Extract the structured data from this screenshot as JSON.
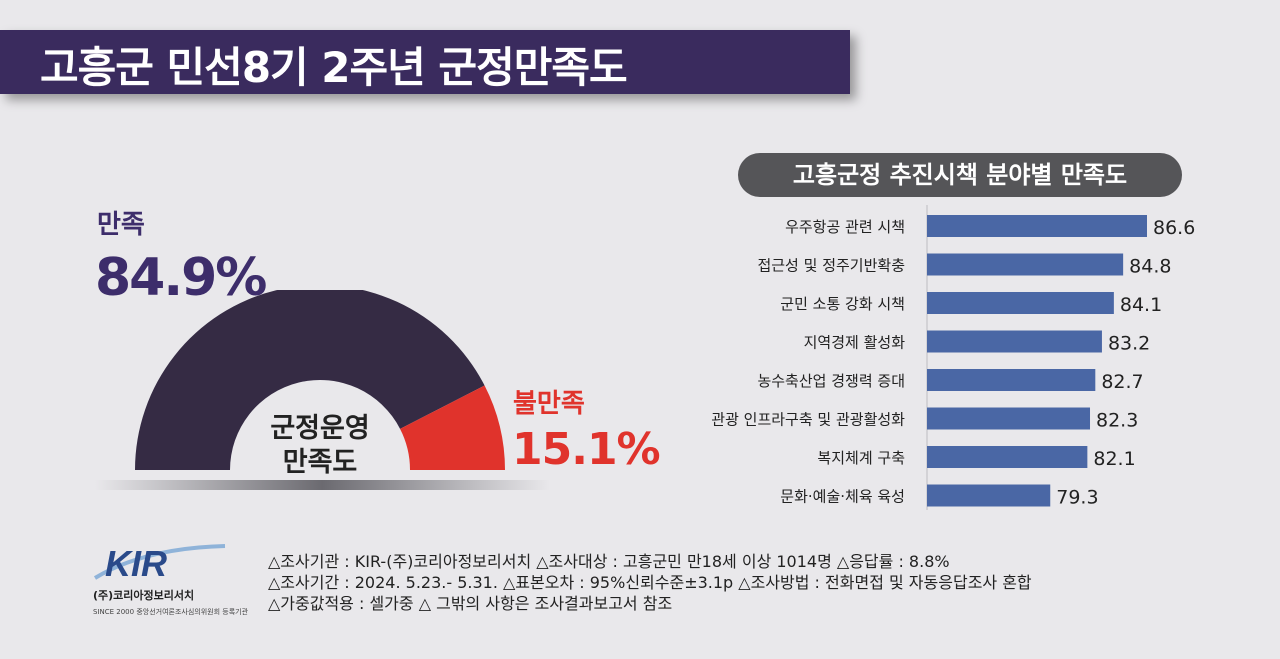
{
  "title": "고흥군 민선8기 2주년 군정만족도",
  "gauge": {
    "center_label_line1": "군정운영",
    "center_label_line2": "만족도",
    "satisfied_label": "만족",
    "satisfied_value": "84.9%",
    "dissatisfied_label": "불만족",
    "dissatisfied_value": "15.1%",
    "colors": {
      "satisfied": "#352b44",
      "dissatisfied": "#e0332c"
    }
  },
  "bar_panel_title": "고흥군정 추진시책 분야별 만족도",
  "chart_data": [
    {
      "type": "pie",
      "title": "",
      "categories": [
        "만족",
        "불만족"
      ],
      "values": [
        84.9,
        15.1
      ],
      "unit": "%"
    },
    {
      "type": "bar",
      "orientation": "horizontal",
      "title": "고흥군정 추진시책 분야별 만족도",
      "categories": [
        "우주항공 관련 시책",
        "접근성 및 정주기반확충",
        "군민 소통 강화 시책",
        "지역경제 활성화",
        "농수축산업 경쟁력 증대",
        "관광 인프라구축 및 관광활성화",
        "복지체계 구축",
        "문화·예술·체육 육성"
      ],
      "values": [
        86.6,
        84.8,
        84.1,
        83.2,
        82.7,
        82.3,
        82.1,
        79.3
      ],
      "bar_color": "#4a67a5"
    }
  ],
  "footer": {
    "logo_text": "KIR",
    "company": "(주)코리아정보리서치",
    "since": "SINCE 2000   중앙선거여론조사심의위원회 등록기관",
    "line1": "△조사기관 : KIR-(주)코리아정보리서치  △조사대상 : 고흥군민 만18세 이상 1014명  △응답률 : 8.8%",
    "line2": "△조사기간 : 2024. 5.23.- 5.31. △표본오차 : 95%신뢰수준±3.1p  △조사방법 : 전화면접 및 자동응답조사 혼합",
    "line3": "△가중값적용 : 셀가중  △ 그밖의 사항은 조사결과보고서 참조"
  }
}
